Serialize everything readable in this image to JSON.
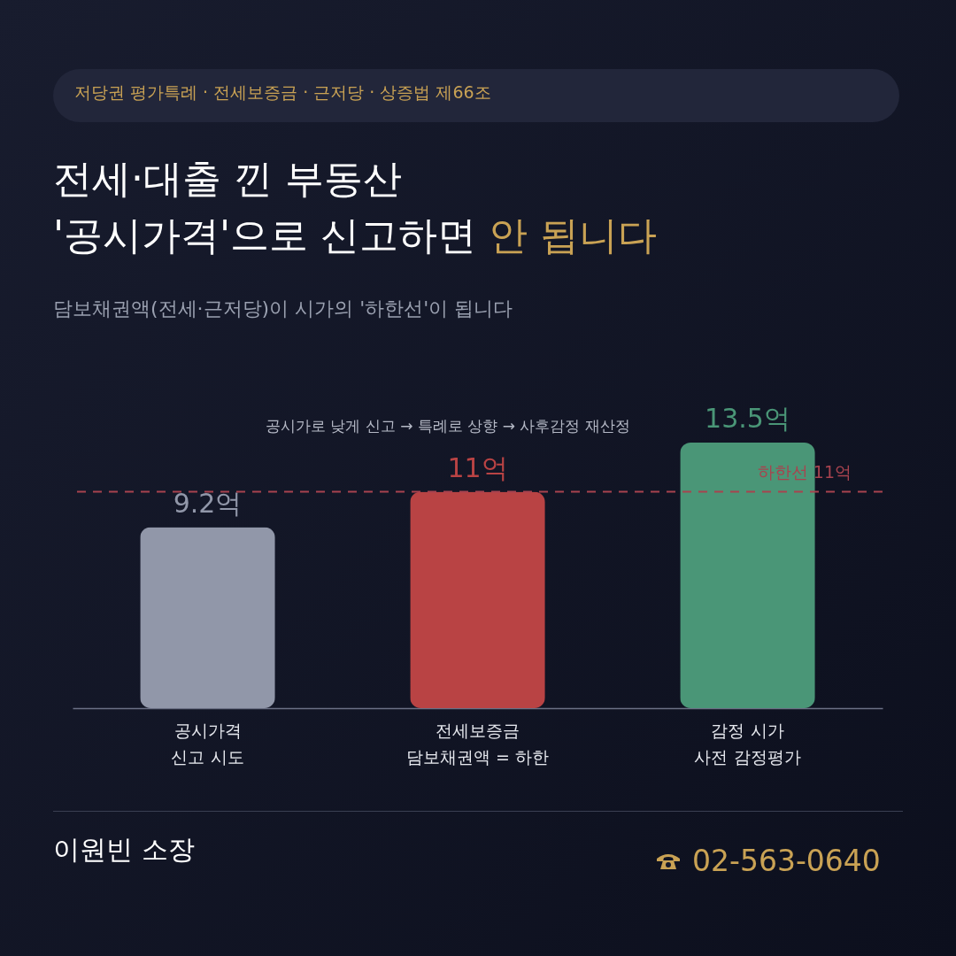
{
  "chart_data": {
    "type": "bar",
    "title": "전세·대출 낀 부동산\n'공시가격'으로 신고하면 안 됩니다",
    "subtitle": "담보채권액(전세·근저당)이 시가의 '하한선'이 됩니다",
    "categories": [
      "공시가격\n신고 시도",
      "전세보증금\n담보채권액 = 하한",
      "감정 시가\n사전 감정평가"
    ],
    "values": [
      9.2,
      11,
      13.5
    ],
    "colors": [
      "#9197a9",
      "#b94344",
      "#4a9677"
    ],
    "value_labels": [
      "9.2억",
      "11억",
      "13.5억"
    ],
    "ref_lines": [
      {
        "axis": "y",
        "value": 11,
        "label": "하한선 11억",
        "color": "#a8434f",
        "line_style": "dashed"
      }
    ],
    "annotations": [
      "저당권 평가특례 · 전세보증금 · 근저당 · 상증법 제66조",
      "공시가로 낮게 신고 → 특례로 상향 → 사후감정 재산정",
      "이원빈 소장",
      "02-563-0640"
    ],
    "grid": false,
    "legend": false
  }
}
